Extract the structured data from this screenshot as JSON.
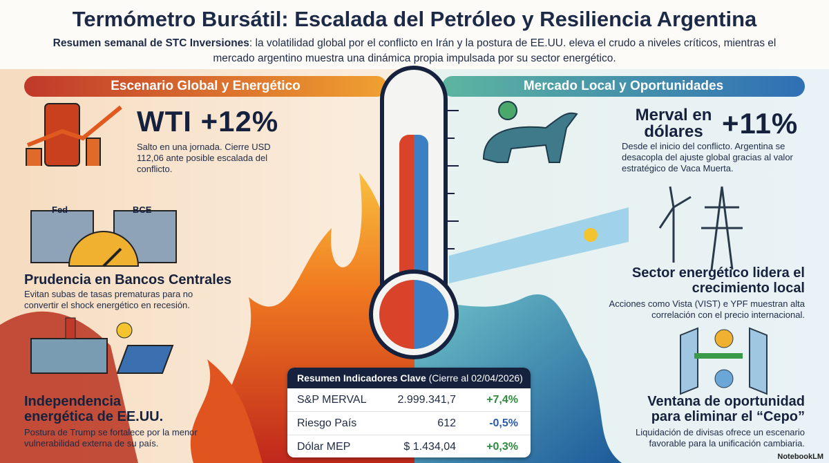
{
  "header": {
    "title": "Termómetro Bursátil: Escalada del Petróleo y Resiliencia Argentina",
    "subtitle_lead": "Resumen semanal de STC Inversiones",
    "subtitle_text": ": la volatilidad global por el conflicto en Irán y la postura de EE.UU. eleva el crudo a niveles críticos, mientras el mercado argentino muestra una dinámica propia impulsada por su sector energético."
  },
  "left": {
    "heading": "Escenario Global y Energético",
    "items": [
      {
        "title": "WTI +12%",
        "text": "Salto en una jornada. Cierre USD 112,06 ante posible escalada del conflicto."
      },
      {
        "icon_labels": [
          "Fed",
          "BCE"
        ],
        "title": "Prudencia en Bancos Centrales",
        "text": "Evitan subas de tasas prematuras para no convertir el shock energético en recesión."
      },
      {
        "title": "Independencia energética de EE.UU.",
        "text": "Postura de Trump se fortalece por la menor vulnerabilidad externa de su país."
      }
    ]
  },
  "right": {
    "heading": "Mercado Local y Oportunidades",
    "items": [
      {
        "title": "Merval en dólares",
        "figure": "+11%",
        "text": "Desde el inicio del conflicto. Argentina se desacopla del ajuste global gracias al valor estratégico de Vaca Muerta."
      },
      {
        "title": "Sector energético lidera el crecimiento local",
        "text": "Acciones como Vista (VIST) e YPF muestran alta correlación con el precio internacional."
      },
      {
        "title": "Ventana de oportunidad para eliminar el “Cepo”",
        "text": "Liquidación de divisas ofrece un escenario favorable para la unificación cambiaria."
      }
    ]
  },
  "table": {
    "title": "Resumen Indicadores Clave",
    "note": "(Cierre al 02/04/2026)",
    "rows": [
      [
        "S&P MERVAL",
        "2.999.341,7",
        "+7,4%"
      ],
      [
        "Riesgo País",
        "612",
        "-0,5%"
      ],
      [
        "Dólar MEP",
        "$ 1.434,04",
        "+0,3%"
      ]
    ]
  },
  "footer": {
    "brand": "NotebookLM"
  }
}
